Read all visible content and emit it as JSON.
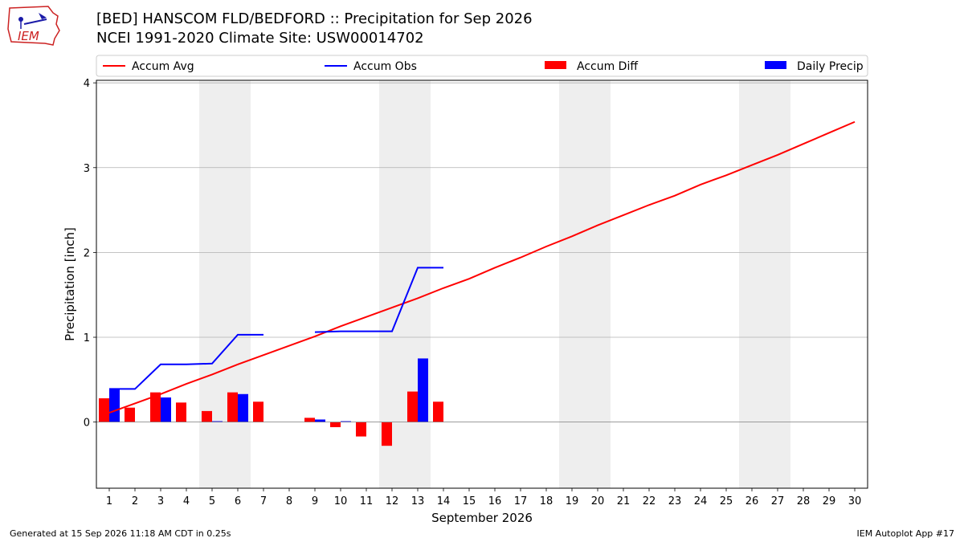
{
  "header": {
    "title_line1": "[BED] HANSCOM FLD/BEDFORD :: Precipitation for Sep 2026",
    "title_line2": "NCEI 1991-2020 Climate Site: USW00014702"
  },
  "logo": {
    "text": "IEM",
    "icon": "iem-logo-icon",
    "color": "#cc2222"
  },
  "footer": {
    "generated": "Generated at 15 Sep 2026 11:18 AM CDT in 0.25s",
    "app": "IEM Autoplot App #17"
  },
  "chart_data": {
    "type": "bar",
    "xlabel": "September 2026",
    "ylabel": "Precipitation [inch]",
    "x": [
      1,
      2,
      3,
      4,
      5,
      6,
      7,
      8,
      9,
      10,
      11,
      12,
      13,
      14,
      15,
      16,
      17,
      18,
      19,
      20,
      21,
      22,
      23,
      24,
      25,
      26,
      27,
      28,
      29,
      30
    ],
    "xlim": [
      0.5,
      30.5
    ],
    "ylim": [
      -0.78,
      4.03
    ],
    "yticks": [
      0,
      1,
      2,
      3,
      4
    ],
    "grid": true,
    "weekend_shading": [
      [
        4.5,
        6.5
      ],
      [
        11.5,
        13.5
      ],
      [
        18.5,
        20.5
      ],
      [
        25.5,
        27.5
      ]
    ],
    "shading_color": "#eeeeee",
    "legend": {
      "placement": "top",
      "entries": [
        {
          "label": "Accum Avg",
          "kind": "line",
          "color": "#ff0000"
        },
        {
          "label": "Accum Obs",
          "kind": "line",
          "color": "#0000ff"
        },
        {
          "label": "Accum Diff",
          "kind": "bar",
          "color": "#ff0000"
        },
        {
          "label": "Daily Precip",
          "kind": "bar",
          "color": "#0000ff"
        }
      ]
    },
    "series": [
      {
        "name": "Accum Avg",
        "kind": "line",
        "color": "#ff0000",
        "x": [
          1,
          2,
          3,
          4,
          5,
          6,
          7,
          8,
          9,
          10,
          11,
          12,
          13,
          14,
          15,
          16,
          17,
          18,
          19,
          20,
          21,
          22,
          23,
          24,
          25,
          26,
          27,
          28,
          29,
          30
        ],
        "values": [
          0.11,
          0.22,
          0.33,
          0.45,
          0.56,
          0.68,
          0.79,
          0.9,
          1.01,
          1.13,
          1.24,
          1.35,
          1.46,
          1.58,
          1.69,
          1.82,
          1.94,
          2.07,
          2.19,
          2.32,
          2.44,
          2.56,
          2.67,
          2.8,
          2.91,
          3.03,
          3.15,
          3.28,
          3.41,
          3.54
        ]
      },
      {
        "name": "Accum Obs",
        "kind": "step",
        "color": "#0000ff",
        "segments": [
          {
            "x": [
              1,
              2,
              3,
              4,
              5,
              6,
              7
            ],
            "values": [
              0.39,
              0.39,
              0.68,
              0.68,
              0.69,
              1.03,
              1.03
            ]
          },
          {
            "x": [
              9,
              10,
              11,
              12,
              13,
              14
            ],
            "values": [
              1.06,
              1.07,
              1.07,
              1.07,
              1.82,
              1.82
            ]
          }
        ]
      },
      {
        "name": "Accum Diff",
        "kind": "bar",
        "color": "#ff0000",
        "x": [
          1,
          2,
          3,
          4,
          5,
          6,
          7,
          9,
          10,
          11,
          12,
          13,
          14
        ],
        "values": [
          0.28,
          0.17,
          0.35,
          0.23,
          0.13,
          0.35,
          0.24,
          0.05,
          -0.06,
          -0.17,
          -0.28,
          0.36,
          0.24
        ]
      },
      {
        "name": "Daily Precip",
        "kind": "bar",
        "color": "#0000ff",
        "x": [
          1,
          3,
          5,
          6,
          9,
          10,
          13
        ],
        "values": [
          0.39,
          0.29,
          0.01,
          0.33,
          0.03,
          0.01,
          0.75
        ]
      }
    ]
  }
}
